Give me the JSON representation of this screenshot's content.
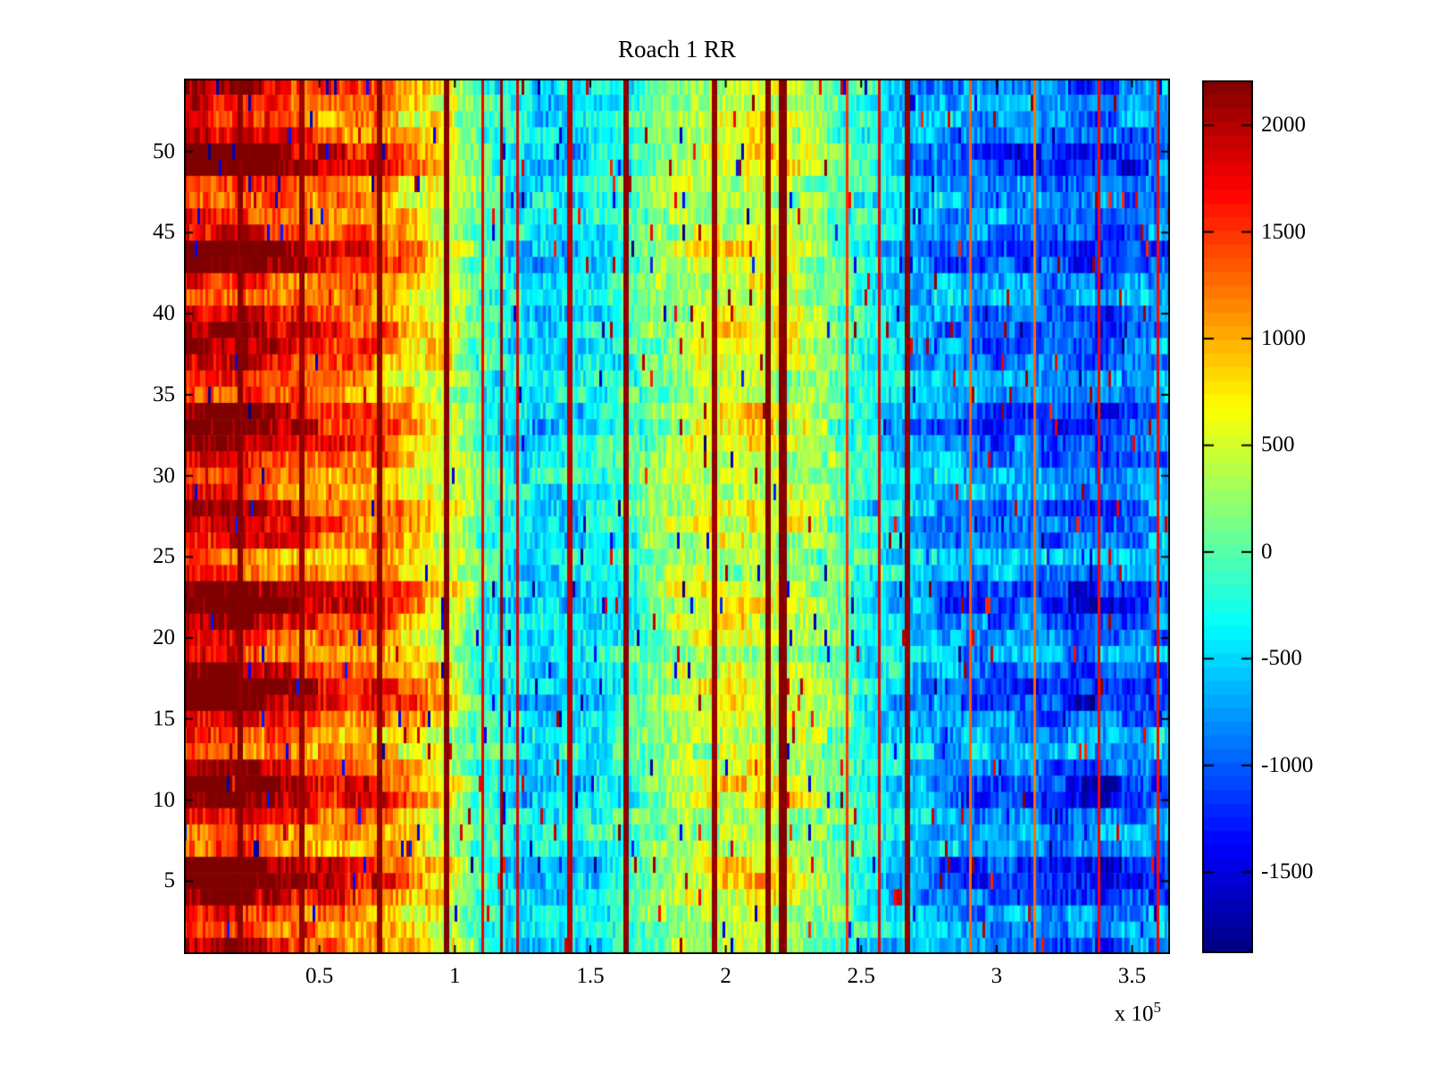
{
  "title": "Roach 1 RR",
  "x_axis": {
    "tick_labels": [
      "0.5",
      "1",
      "1.5",
      "2",
      "2.5",
      "3",
      "3.5"
    ],
    "tick_values_e5": [
      0.5,
      1,
      1.5,
      2,
      2.5,
      3,
      3.5
    ],
    "exponent_label": {
      "prefix": "x 10",
      "exponent": "5"
    },
    "range_e5": [
      0,
      3.64
    ]
  },
  "y_axis": {
    "tick_labels": [
      "5",
      "10",
      "15",
      "20",
      "25",
      "30",
      "35",
      "40",
      "45",
      "50"
    ],
    "tick_values": [
      5,
      10,
      15,
      20,
      25,
      30,
      35,
      40,
      45,
      50
    ],
    "range": [
      1,
      54
    ]
  },
  "colorbar": {
    "tick_labels": [
      "2000",
      "1500",
      "1000",
      "500",
      "0",
      "-500",
      "-1000",
      "-1500"
    ],
    "tick_values": [
      2000,
      1500,
      1000,
      500,
      0,
      -500,
      -1000,
      -1500
    ],
    "value_range": [
      -1880,
      2210
    ],
    "colormap": "jet",
    "levels": 64
  },
  "chart_data": {
    "type": "heatmap",
    "title": "Roach 1 RR",
    "x_range": [
      0,
      364000
    ],
    "n_rows": 54,
    "n_cols": 368,
    "color_range": [
      -1880,
      2210
    ],
    "column_mean_profile": {
      "x_step_e5": 0.1,
      "values": [
        1950,
        1880,
        1950,
        1750,
        1550,
        1400,
        1320,
        1280,
        1050,
        750,
        450,
        -100,
        -380,
        -500,
        -430,
        -380,
        -220,
        20,
        280,
        430,
        520,
        560,
        500,
        330,
        80,
        -220,
        -420,
        -560,
        -700,
        -820,
        -900,
        -860,
        -920,
        -1020,
        -1060,
        -920,
        -760
      ]
    },
    "row_amplitude": [
      1.0,
      0.8,
      0.85,
      1.2,
      1.4,
      1.35,
      0.75,
      0.7,
      0.95,
      1.3,
      1.35,
      1.05,
      0.7,
      0.75,
      1.0,
      1.35,
      1.3,
      1.1,
      0.8,
      0.9,
      1.1,
      1.35,
      1.3,
      0.75,
      0.7,
      0.95,
      1.05,
      1.1,
      0.8,
      0.75,
      1.0,
      1.1,
      1.25,
      1.2,
      0.8,
      0.75,
      1.0,
      1.1,
      1.15,
      1.05,
      0.8,
      0.85,
      1.25,
      1.3,
      1.0,
      0.9,
      0.8,
      0.85,
      1.3,
      1.35,
      1.0,
      0.85,
      0.9,
      1.05
    ],
    "vertical_line_artifacts": [
      {
        "x_e5": 0.21,
        "value": 2180,
        "width_cols": 2
      },
      {
        "x_e5": 0.44,
        "value": 2120,
        "width_cols": 2
      },
      {
        "x_e5": 0.72,
        "value": 2150,
        "width_cols": 2
      },
      {
        "x_e5": 0.97,
        "value": 2180,
        "width_cols": 2
      },
      {
        "x_e5": 1.1,
        "value": 1780,
        "width_cols": 1
      },
      {
        "x_e5": 1.17,
        "value": 2100,
        "width_cols": 1
      },
      {
        "x_e5": 1.23,
        "value": 1800,
        "width_cols": 1
      },
      {
        "x_e5": 1.42,
        "value": 1950,
        "width_cols": 2
      },
      {
        "x_e5": 1.63,
        "value": 2150,
        "width_cols": 2
      },
      {
        "x_e5": 1.96,
        "value": 2120,
        "width_cols": 2
      },
      {
        "x_e5": 2.16,
        "value": 2200,
        "width_cols": 2
      },
      {
        "x_e5": 2.21,
        "value": 2200,
        "width_cols": 3
      },
      {
        "x_e5": 2.45,
        "value": 1500,
        "width_cols": 1
      },
      {
        "x_e5": 2.57,
        "value": 1780,
        "width_cols": 1
      },
      {
        "x_e5": 2.67,
        "value": 2150,
        "width_cols": 2
      },
      {
        "x_e5": 2.9,
        "value": 1300,
        "width_cols": 1
      },
      {
        "x_e5": 3.14,
        "value": 1250,
        "width_cols": 1
      },
      {
        "x_e5": 3.38,
        "value": 1700,
        "width_cols": 1
      },
      {
        "x_e5": 3.6,
        "value": 1700,
        "width_cols": 1
      }
    ],
    "texture": {
      "cell_noise": 320,
      "block_noise": 260,
      "block_width_cols": 10,
      "spike_prob": 0.024,
      "seed": 20131
    }
  },
  "colors": {
    "background": "#ffffff",
    "axis": "#000000",
    "text": "#000000"
  }
}
